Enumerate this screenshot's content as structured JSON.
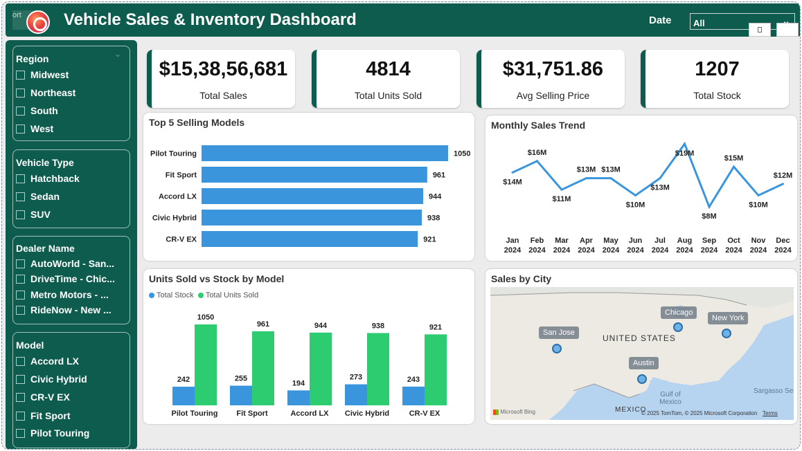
{
  "header": {
    "title": "Vehicle Sales & Inventory Dashboard",
    "logo_ghost_text": "ort",
    "date_label": "Date",
    "date_value": "All"
  },
  "slicers": {
    "region": {
      "title": "Region",
      "items": [
        "Midwest",
        "Northeast",
        "South",
        "West"
      ]
    },
    "vehicle_type": {
      "title": "Vehicle Type",
      "items": [
        "Hatchback",
        "Sedan",
        "SUV"
      ]
    },
    "dealer": {
      "title": "Dealer Name",
      "items": [
        "AutoWorld - San...",
        "DriveTime - Chic...",
        "Metro Motors - ...",
        "RideNow - New ..."
      ]
    },
    "model": {
      "title": "Model",
      "items": [
        "Accord LX",
        "Civic Hybrid",
        "CR-V EX",
        "Fit Sport",
        "Pilot Touring"
      ]
    }
  },
  "kpis": [
    {
      "value": "$15,38,56,681",
      "label": "Total Sales"
    },
    {
      "value": "4814",
      "label": "Total Units Sold"
    },
    {
      "value": "$31,751.86",
      "label": "Avg Selling Price"
    },
    {
      "value": "1207",
      "label": "Total Stock"
    }
  ],
  "cards": {
    "top5_title": "Top 5 Selling Models",
    "trend_title": "Monthly Sales Trend",
    "units_title": "Units Sold vs Stock by Model",
    "map_title": "Sales by City"
  },
  "colors": {
    "brand": "#0e5c4e",
    "bar_blue": "#3a95dc",
    "bar_green": "#2ecc71",
    "line": "#3a95dc"
  },
  "chart_data": [
    {
      "type": "bar",
      "orientation": "horizontal",
      "title": "Top 5 Selling Models",
      "categories": [
        "Pilot Touring",
        "Fit Sport",
        "Accord LX",
        "Civic Hybrid",
        "CR-V EX"
      ],
      "values": [
        1050,
        961,
        944,
        938,
        921
      ]
    },
    {
      "type": "line",
      "title": "Monthly Sales Trend",
      "x": [
        "Jan 2024",
        "Feb 2024",
        "Mar 2024",
        "Apr 2024",
        "May 2024",
        "Jun 2024",
        "Jul 2024",
        "Aug 2024",
        "Sep 2024",
        "Oct 2024",
        "Nov 2024",
        "Dec 2024"
      ],
      "values": [
        14,
        16,
        11,
        13,
        13,
        10,
        13,
        19,
        8,
        15,
        10,
        12
      ],
      "data_labels": [
        "$14M",
        "$16M",
        "$11M",
        "$13M",
        "$13M",
        "$10M",
        "$13M",
        "$19M",
        "$8M",
        "$15M",
        "$10M",
        "$12M"
      ],
      "label_above": [
        false,
        true,
        false,
        true,
        true,
        false,
        false,
        false,
        false,
        true,
        false,
        true
      ]
    },
    {
      "type": "bar",
      "title": "Units Sold vs Stock by Model",
      "categories": [
        "Pilot Touring",
        "Fit Sport",
        "Accord LX",
        "Civic Hybrid",
        "CR-V EX"
      ],
      "series": [
        {
          "name": "Total Stock",
          "values": [
            242,
            255,
            194,
            273,
            243
          ]
        },
        {
          "name": "Total Units Sold",
          "values": [
            1050,
            961,
            944,
            938,
            921
          ]
        }
      ],
      "legend": "top-left"
    }
  ],
  "map": {
    "country_label": "UNITED STATES",
    "mexico_label": "MEXICO",
    "gulf_label": "Gulf of Mexico",
    "sea_label": "Sargasso Sea",
    "attribution": "© 2025 TomTom, © 2025 Microsoft Corporation",
    "terms": "Terms",
    "bing": "Microsoft Bing",
    "cities": [
      "San Jose",
      "Chicago",
      "New York",
      "Austin"
    ]
  }
}
